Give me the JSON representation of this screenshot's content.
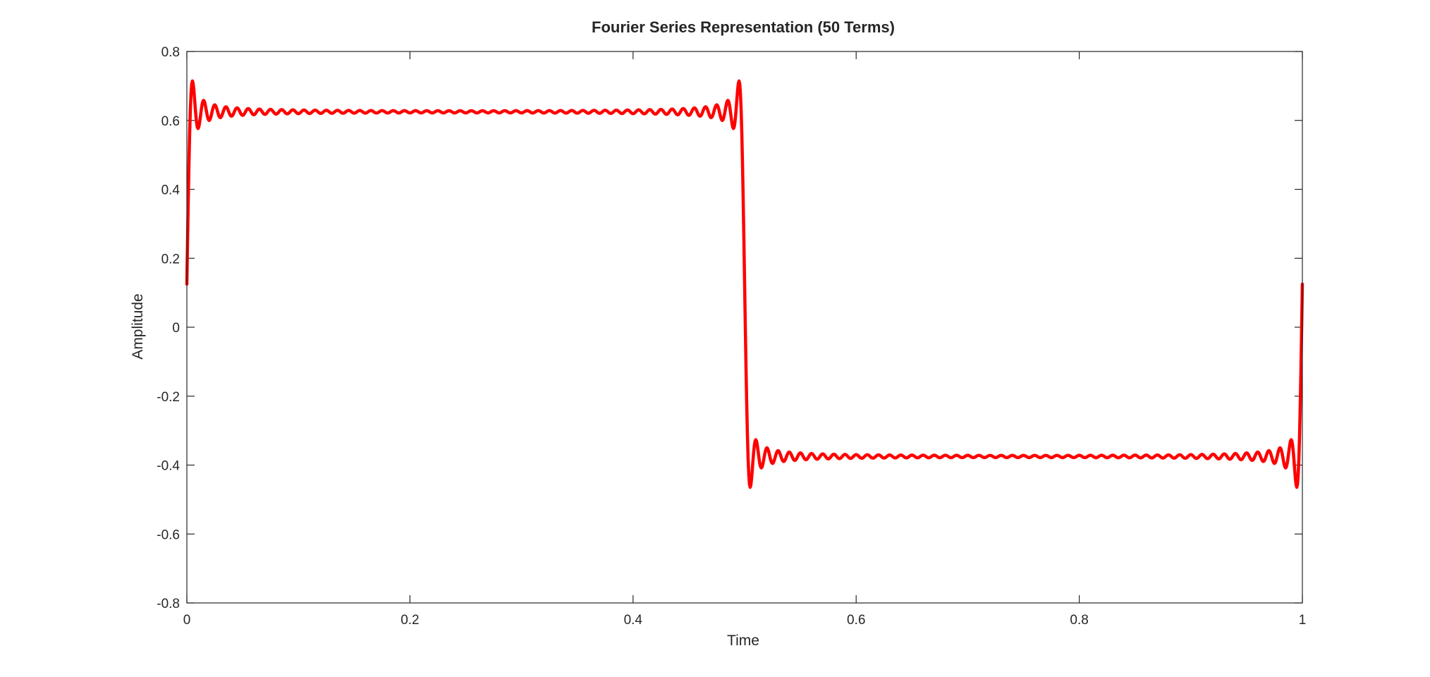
{
  "chart_data": {
    "type": "line",
    "title": "Fourier Series Representation (50 Terms)",
    "xlabel": "Time",
    "ylabel": "Amplitude",
    "xlim": [
      0,
      1
    ],
    "ylim": [
      -0.8,
      0.8
    ],
    "x_ticks": [
      0,
      0.2,
      0.4,
      0.6,
      0.8,
      1
    ],
    "x_tick_labels": [
      "0",
      "0.2",
      "0.4",
      "0.6",
      "0.8",
      "1"
    ],
    "y_ticks": [
      0.8,
      0.6,
      0.4,
      0.2,
      0,
      -0.2,
      -0.4,
      -0.6,
      -0.8
    ],
    "y_tick_labels": [
      "0.8",
      "0.6",
      "0.4",
      "0.2",
      "0",
      "-0.2",
      "-0.4",
      "-0.6",
      "-0.8"
    ],
    "grid": false,
    "legend": "none",
    "series": [
      {
        "color": "#ff0000",
        "signal": "square wave, period 1, high 0.625 for 0<t<0.5, low -0.375 for 0.5<t<1",
        "terms": 50,
        "offset": 0.125,
        "amplitude": 0.5,
        "samples": 1600
      }
    ]
  }
}
